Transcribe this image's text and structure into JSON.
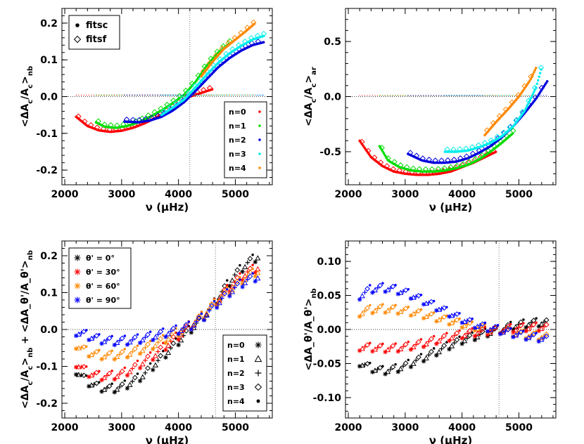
{
  "chart_data": [
    {
      "id": "tl",
      "type": "scatter",
      "xlabel": "ν (μHz)",
      "ylabel": "<ΔA_c/A_c>_nb",
      "xlim": [
        1950,
        5650
      ],
      "ylim": [
        -0.24,
        0.24
      ],
      "xticks": [
        2000,
        3000,
        4000,
        5000
      ],
      "xtick_labels": [
        "2000",
        "3000",
        "4000",
        "5000"
      ],
      "yticks": [
        -0.2,
        -0.1,
        0.0,
        0.1,
        0.2
      ],
      "ytick_labels": [
        "-0.2",
        "-0.1",
        "0.0",
        "0.1",
        "0.2"
      ],
      "vline": 4200,
      "hline": 0,
      "method_legend": {
        "position": "top-left",
        "entries": [
          "fitsc",
          "fitsf"
        ]
      },
      "order_legend": {
        "position": "bottom-right",
        "entries": [
          "n=0",
          "n=1",
          "n=2",
          "n=3",
          "n=4"
        ]
      },
      "series": [
        {
          "name": "n=0",
          "color": "#ff0000",
          "x": [
            2200,
            2400,
            2600,
            2800,
            3000,
            3200,
            3400,
            3600,
            3800,
            4000,
            4200,
            4400,
            4600
          ],
          "y": [
            -0.055,
            -0.08,
            -0.092,
            -0.096,
            -0.093,
            -0.085,
            -0.073,
            -0.058,
            -0.04,
            -0.02,
            0.0,
            0.01,
            0.02
          ]
        },
        {
          "name": "n=1",
          "color": "#00dd00",
          "x": [
            2550,
            2700,
            2900,
            3100,
            3300,
            3500,
            3700,
            3900,
            4100,
            4300,
            4500,
            4700,
            4900
          ],
          "y": [
            -0.07,
            -0.082,
            -0.085,
            -0.08,
            -0.07,
            -0.055,
            -0.038,
            -0.018,
            0.005,
            0.04,
            0.085,
            0.12,
            0.145
          ]
        },
        {
          "name": "n=2",
          "color": "#0000dd",
          "x": [
            3050,
            3300,
            3500,
            3700,
            3900,
            4100,
            4300,
            4500,
            4700,
            4900,
            5100,
            5300,
            5500
          ],
          "y": [
            -0.068,
            -0.07,
            -0.065,
            -0.055,
            -0.038,
            -0.015,
            0.015,
            0.048,
            0.08,
            0.105,
            0.125,
            0.14,
            0.148
          ]
        },
        {
          "name": "n=3",
          "color": "#00eeee",
          "x": [
            3700,
            3900,
            4100,
            4300,
            4500,
            4700,
            4900,
            5100,
            5300,
            5500
          ],
          "y": [
            -0.05,
            -0.03,
            -0.008,
            0.025,
            0.06,
            0.092,
            0.118,
            0.138,
            0.155,
            0.165
          ]
        },
        {
          "name": "n=4",
          "color": "#ff8800",
          "x": [
            4400,
            4600,
            4800,
            5000,
            5200,
            5350
          ],
          "y": [
            0.055,
            0.095,
            0.13,
            0.155,
            0.18,
            0.2
          ]
        }
      ]
    },
    {
      "id": "tr",
      "type": "scatter",
      "xlabel": "ν (μHz)",
      "ylabel": "<ΔA_c/A_c>_ar",
      "xlim": [
        1950,
        5650
      ],
      "ylim": [
        -0.8,
        0.8
      ],
      "xticks": [
        2000,
        3000,
        4000,
        5000
      ],
      "xtick_labels": [
        "2000",
        "3000",
        "4000",
        "5000"
      ],
      "yticks": [
        -0.5,
        0.0,
        0.5
      ],
      "ytick_labels": [
        "-0.5",
        "0.0",
        "0.5"
      ],
      "hline": 0,
      "series": [
        {
          "name": "n=0",
          "color": "#ff0000",
          "x": [
            2200,
            2400,
            2600,
            2800,
            3000,
            3200,
            3400,
            3600,
            3800,
            4000,
            4200,
            4400,
            4600
          ],
          "y": [
            -0.4,
            -0.55,
            -0.63,
            -0.68,
            -0.7,
            -0.71,
            -0.71,
            -0.7,
            -0.68,
            -0.64,
            -0.6,
            -0.55,
            -0.5
          ]
        },
        {
          "name": "n=1",
          "color": "#00dd00",
          "x": [
            2550,
            2700,
            2900,
            3100,
            3300,
            3500,
            3700,
            3900,
            4100,
            4300,
            4500,
            4700,
            4900
          ],
          "y": [
            -0.45,
            -0.58,
            -0.64,
            -0.67,
            -0.68,
            -0.68,
            -0.67,
            -0.65,
            -0.62,
            -0.57,
            -0.5,
            -0.42,
            -0.33
          ]
        },
        {
          "name": "n=2",
          "color": "#0000dd",
          "x": [
            3050,
            3300,
            3500,
            3700,
            3900,
            4100,
            4300,
            4500,
            4700,
            4900,
            5100,
            5300,
            5500
          ],
          "y": [
            -0.52,
            -0.58,
            -0.6,
            -0.6,
            -0.59,
            -0.56,
            -0.51,
            -0.45,
            -0.37,
            -0.27,
            -0.15,
            -0.02,
            0.14
          ]
        },
        {
          "name": "n=3",
          "color": "#00eeee",
          "x": [
            3700,
            3900,
            4100,
            4300,
            4500,
            4700,
            4900,
            5100,
            5300,
            5400
          ],
          "y": [
            -0.5,
            -0.5,
            -0.49,
            -0.46,
            -0.42,
            -0.36,
            -0.27,
            -0.13,
            0.08,
            0.26
          ]
        },
        {
          "name": "n=4",
          "color": "#ff8800",
          "x": [
            4400,
            4600,
            4800,
            5000,
            5200,
            5300
          ],
          "y": [
            -0.35,
            -0.23,
            -0.12,
            0.0,
            0.15,
            0.26
          ]
        }
      ]
    },
    {
      "id": "bl",
      "type": "scatter",
      "xlabel": "ν (μHz)",
      "ylabel": "<ΔA_c/A_c>_nb + <ΔA_θ'/A_θ'>_nb",
      "xlim": [
        1950,
        5650
      ],
      "ylim": [
        -0.24,
        0.24
      ],
      "xticks": [
        2000,
        3000,
        4000,
        5000
      ],
      "xtick_labels": [
        "2000",
        "3000",
        "4000",
        "5000"
      ],
      "yticks": [
        -0.2,
        -0.1,
        0.0,
        0.1,
        0.2
      ],
      "ytick_labels": [
        "-0.2",
        "-0.1",
        "0.0",
        "0.1",
        "0.2"
      ],
      "vline": 4650,
      "hline": 0,
      "angle_legend": {
        "position": "top-left",
        "entries": [
          "θ' =  0°",
          "θ' = 30°",
          "θ' = 60°",
          "θ' = 90°"
        ],
        "colors": [
          "#000000",
          "#ff0000",
          "#ff8800",
          "#0000ff"
        ]
      },
      "order_legend": {
        "position": "bottom-right",
        "entries": [
          "n=0",
          "n=1",
          "n=2",
          "n=3",
          "n=4"
        ],
        "symbols": [
          "✱",
          "△",
          "+",
          "◇",
          "●"
        ]
      },
      "series": [
        {
          "name": "θ' =  0°",
          "color": "#000000",
          "x": [
            2200,
            2400,
            2600,
            2800,
            3000,
            3200,
            3400,
            3600,
            3800,
            4000,
            4200,
            4400,
            4600,
            4800,
            5000,
            5200,
            5400
          ],
          "y": [
            -0.11,
            -0.14,
            -0.155,
            -0.16,
            -0.155,
            -0.14,
            -0.12,
            -0.09,
            -0.06,
            -0.03,
            0.0,
            0.03,
            0.065,
            0.11,
            0.15,
            0.18,
            0.2
          ]
        },
        {
          "name": "θ' = 30°",
          "color": "#ff0000",
          "x": [
            2200,
            2400,
            2600,
            2800,
            3000,
            3200,
            3400,
            3600,
            3800,
            4000,
            4200,
            4400,
            4600,
            4800,
            5000,
            5200,
            5400
          ],
          "y": [
            -0.09,
            -0.115,
            -0.125,
            -0.125,
            -0.12,
            -0.105,
            -0.085,
            -0.065,
            -0.04,
            -0.015,
            0.01,
            0.035,
            0.065,
            0.1,
            0.13,
            0.155,
            0.17
          ]
        },
        {
          "name": "θ' = 60°",
          "color": "#ff8800",
          "x": [
            2200,
            2400,
            2600,
            2800,
            3000,
            3200,
            3400,
            3600,
            3800,
            4000,
            4200,
            4400,
            4600,
            4800,
            5000,
            5200,
            5400
          ],
          "y": [
            -0.04,
            -0.06,
            -0.068,
            -0.07,
            -0.067,
            -0.06,
            -0.05,
            -0.038,
            -0.022,
            -0.005,
            0.012,
            0.035,
            0.065,
            0.095,
            0.12,
            0.145,
            0.16
          ]
        },
        {
          "name": "θ' = 90°",
          "color": "#0000ff",
          "x": [
            2200,
            2400,
            2600,
            2800,
            3000,
            3200,
            3400,
            3600,
            3800,
            4000,
            4200,
            4400,
            4600,
            4800,
            5000,
            5200,
            5400
          ],
          "y": [
            -0.005,
            -0.015,
            -0.025,
            -0.03,
            -0.03,
            -0.028,
            -0.022,
            -0.015,
            -0.007,
            0.0,
            0.01,
            0.03,
            0.06,
            0.09,
            0.115,
            0.135,
            0.145
          ]
        }
      ]
    },
    {
      "id": "br",
      "type": "scatter",
      "xlabel": "ν (μHz)",
      "ylabel": "<ΔA_θ'/A_θ'>_nb",
      "xlim": [
        1950,
        5650
      ],
      "ylim": [
        -0.13,
        0.13
      ],
      "xticks": [
        2000,
        3000,
        4000,
        5000
      ],
      "xtick_labels": [
        "2000",
        "3000",
        "4000",
        "5000"
      ],
      "yticks": [
        -0.1,
        -0.05,
        0.0,
        0.05,
        0.1
      ],
      "ytick_labels": [
        "-0.10",
        "-0.05",
        "0.00",
        "0.05",
        "0.10"
      ],
      "vline": 4650,
      "hline": 0,
      "series": [
        {
          "name": "θ' =  0°",
          "color": "#000000",
          "x": [
            2200,
            2400,
            2600,
            2800,
            3000,
            3200,
            3400,
            3600,
            3800,
            4000,
            4200,
            4400,
            4650,
            4900,
            5200,
            5500
          ],
          "y": [
            -0.048,
            -0.056,
            -0.06,
            -0.058,
            -0.053,
            -0.045,
            -0.038,
            -0.03,
            -0.022,
            -0.015,
            -0.01,
            -0.005,
            0.0,
            0.006,
            0.01,
            0.011
          ]
        },
        {
          "name": "θ' = 30°",
          "color": "#ff0000",
          "x": [
            2200,
            2400,
            2600,
            2800,
            3000,
            3200,
            3400,
            3600,
            3800,
            4000,
            4200,
            4400,
            4650,
            4900,
            5200,
            5500
          ],
          "y": [
            -0.025,
            -0.026,
            -0.027,
            -0.027,
            -0.025,
            -0.022,
            -0.018,
            -0.014,
            -0.01,
            -0.007,
            -0.004,
            -0.002,
            0.0,
            0.002,
            0.004,
            0.004
          ]
        },
        {
          "name": "θ' = 60°",
          "color": "#ff8800",
          "x": [
            2200,
            2400,
            2600,
            2800,
            3000,
            3200,
            3400,
            3600,
            3800,
            4000,
            4200,
            4400,
            4650,
            4900,
            5200,
            5500
          ],
          "y": [
            0.025,
            0.03,
            0.031,
            0.03,
            0.028,
            0.025,
            0.021,
            0.017,
            0.013,
            0.009,
            0.005,
            0.002,
            0.0,
            -0.004,
            -0.008,
            -0.01
          ]
        },
        {
          "name": "θ' = 90°",
          "color": "#0000ff",
          "x": [
            2200,
            2400,
            2600,
            2800,
            3000,
            3200,
            3400,
            3600,
            3800,
            4000,
            4200,
            4400,
            4650,
            4900,
            5200,
            5500
          ],
          "y": [
            0.05,
            0.06,
            0.062,
            0.06,
            0.055,
            0.048,
            0.04,
            0.032,
            0.024,
            0.016,
            0.009,
            0.004,
            0.0,
            -0.005,
            -0.01,
            -0.013
          ]
        }
      ]
    }
  ]
}
